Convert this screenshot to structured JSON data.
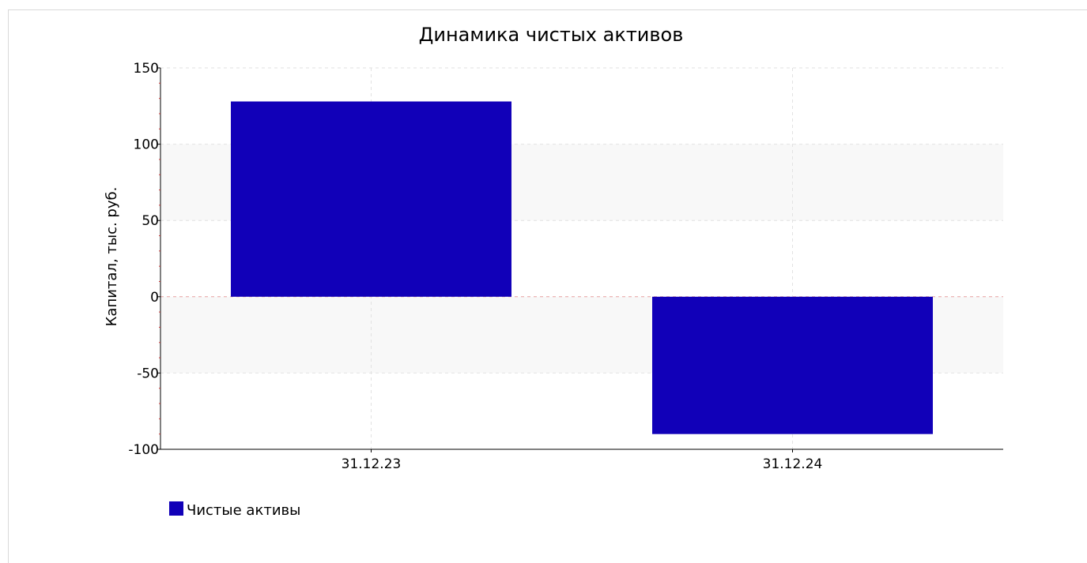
{
  "chart_data": {
    "type": "bar",
    "title": "Динамика чистых активов",
    "ylabel": "Капитал, тыс. руб.",
    "xlabel": "",
    "categories": [
      "31.12.23",
      "31.12.24"
    ],
    "series": [
      {
        "name": "Чистые активы",
        "values": [
          128,
          -90
        ],
        "color": "#1100b8"
      }
    ],
    "ylim": [
      -100,
      150
    ],
    "yticks": [
      -100,
      -50,
      0,
      50,
      100,
      150
    ],
    "ytick_labels": [
      "-100",
      "-50",
      "0",
      "50",
      "100",
      "150"
    ],
    "grid": true,
    "alternating_bands": true,
    "band_color": "#f8f8f8",
    "grid_color": "#e2e2e2",
    "zero_line_color": "#e8a0a0",
    "legend_position": "bottom-left"
  }
}
